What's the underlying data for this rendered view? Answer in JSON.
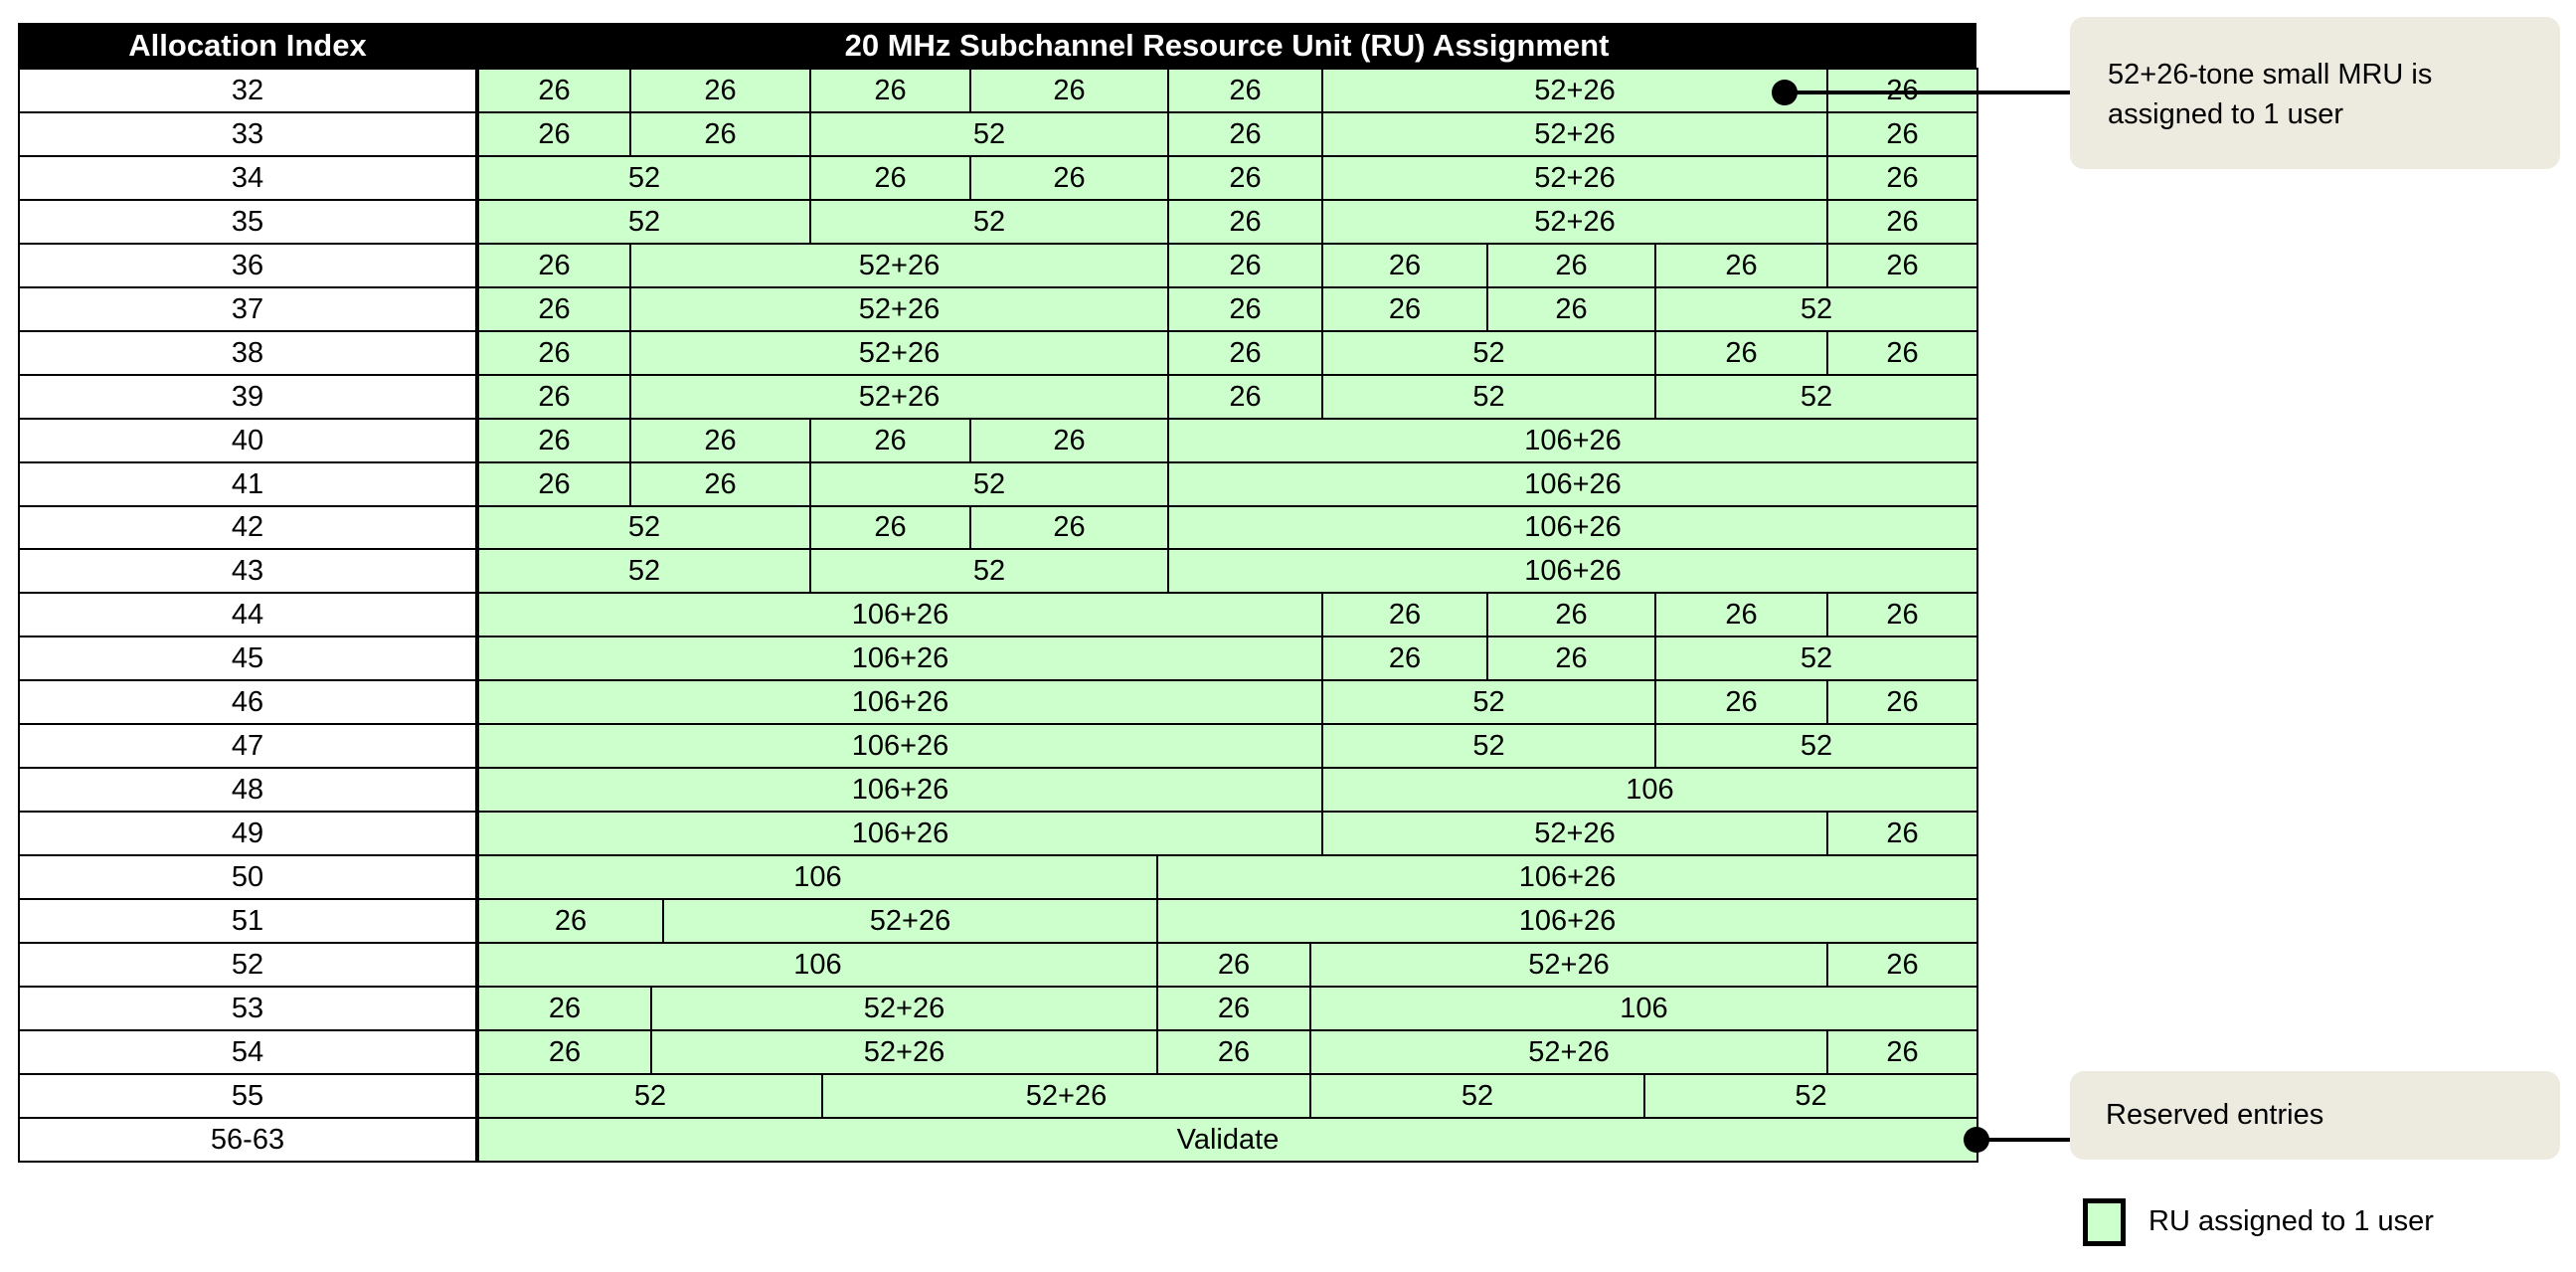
{
  "header": {
    "index_label": "Allocation Index",
    "assignment_label": "20 MHz Subchannel Resource Unit (RU) Assignment"
  },
  "rows": [
    {
      "index": "32",
      "rus": [
        "26",
        "26",
        "26",
        "26",
        "26",
        "52+26",
        "26"
      ]
    },
    {
      "index": "33",
      "rus": [
        "26",
        "26",
        "52",
        "26",
        "52+26",
        "26"
      ]
    },
    {
      "index": "34",
      "rus": [
        "52",
        "26",
        "26",
        "26",
        "52+26",
        "26"
      ]
    },
    {
      "index": "35",
      "rus": [
        "52",
        "52",
        "26",
        "52+26",
        "26"
      ]
    },
    {
      "index": "36",
      "rus": [
        "26",
        "52+26",
        "26",
        "26",
        "26",
        "26",
        "26"
      ]
    },
    {
      "index": "37",
      "rus": [
        "26",
        "52+26",
        "26",
        "26",
        "26",
        "52"
      ]
    },
    {
      "index": "38",
      "rus": [
        "26",
        "52+26",
        "26",
        "52",
        "26",
        "26"
      ]
    },
    {
      "index": "39",
      "rus": [
        "26",
        "52+26",
        "26",
        "52",
        "52"
      ]
    },
    {
      "index": "40",
      "rus": [
        "26",
        "26",
        "26",
        "26",
        "106+26"
      ]
    },
    {
      "index": "41",
      "rus": [
        "26",
        "26",
        "52",
        "106+26"
      ]
    },
    {
      "index": "42",
      "rus": [
        "52",
        "26",
        "26",
        "106+26"
      ]
    },
    {
      "index": "43",
      "rus": [
        "52",
        "52",
        "106+26"
      ]
    },
    {
      "index": "44",
      "rus": [
        "106+26",
        "26",
        "26",
        "26",
        "26"
      ]
    },
    {
      "index": "45",
      "rus": [
        "106+26",
        "26",
        "26",
        "52"
      ]
    },
    {
      "index": "46",
      "rus": [
        "106+26",
        "52",
        "26",
        "26"
      ]
    },
    {
      "index": "47",
      "rus": [
        "106+26",
        "52",
        "52"
      ]
    },
    {
      "index": "48",
      "rus": [
        "106+26",
        "106"
      ]
    },
    {
      "index": "49",
      "rus": [
        "106+26",
        "52+26",
        "26"
      ]
    },
    {
      "index": "50",
      "rus": [
        "106",
        "106+26"
      ]
    },
    {
      "index": "51",
      "rus": [
        "26",
        "52+26",
        "106+26"
      ]
    },
    {
      "index": "52",
      "rus": [
        "106",
        "26",
        "52+26",
        "26"
      ]
    },
    {
      "index": "53",
      "rus": [
        "26",
        "52+26",
        "26",
        "106"
      ]
    },
    {
      "index": "54",
      "rus": [
        "26",
        "52+26",
        "26",
        "52+26",
        "26"
      ]
    },
    {
      "index": "55",
      "rus": [
        "52",
        "52+26",
        "52",
        "52"
      ]
    },
    {
      "index": "56-63",
      "rus": [
        "Validate"
      ]
    }
  ],
  "callouts": {
    "mru": "52+26-tone small MRU is assigned to 1 user",
    "reserved": "Reserved entries"
  },
  "legend": {
    "label": "RU assigned to 1 user",
    "color": "#ccffcc"
  },
  "colors": {
    "ru_fill": "#ccffcc",
    "header": "#000000",
    "callout": "#edeadf"
  }
}
